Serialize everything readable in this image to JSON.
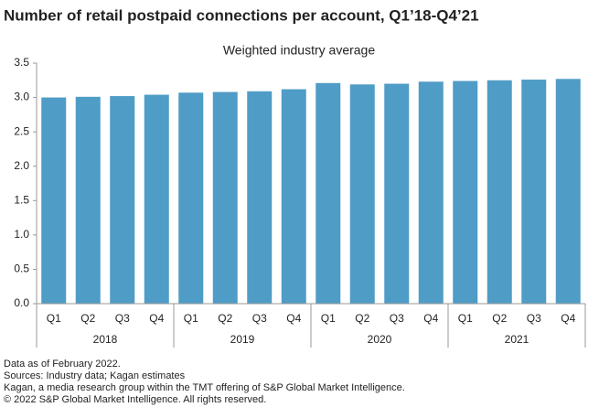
{
  "chart_data": {
    "type": "bar",
    "title": "Number of retail postpaid connections per account, Q1’18-Q4’21",
    "subtitle": "Weighted industry average",
    "categories": [
      "Q1",
      "Q2",
      "Q3",
      "Q4",
      "Q1",
      "Q2",
      "Q3",
      "Q4",
      "Q1",
      "Q2",
      "Q3",
      "Q4",
      "Q1",
      "Q2",
      "Q3",
      "Q4"
    ],
    "groups": [
      "2018",
      "2019",
      "2020",
      "2021"
    ],
    "values": [
      3.0,
      3.01,
      3.02,
      3.04,
      3.07,
      3.08,
      3.09,
      3.12,
      3.21,
      3.19,
      3.2,
      3.23,
      3.24,
      3.25,
      3.26,
      3.27
    ],
    "color": "#4f9cc6",
    "ylim": [
      0,
      3.5
    ],
    "yticks": [
      {
        "value": 0,
        "label": "0.0"
      },
      0.5,
      {
        "value": 1,
        "label": "1.0"
      },
      1.5,
      {
        "value": 2,
        "label": "2.0"
      },
      2.5,
      {
        "value": 3,
        "label": "3.0"
      },
      3.5
    ],
    "grid": false,
    "notes": [
      "Data as of February 2022.",
      "Sources: Industry data; Kagan estimates",
      "Kagan, a media research group within the TMT offering of S&P Global Market Intelligence.",
      "© 2022 S&P Global Market Intelligence. All rights reserved."
    ]
  }
}
